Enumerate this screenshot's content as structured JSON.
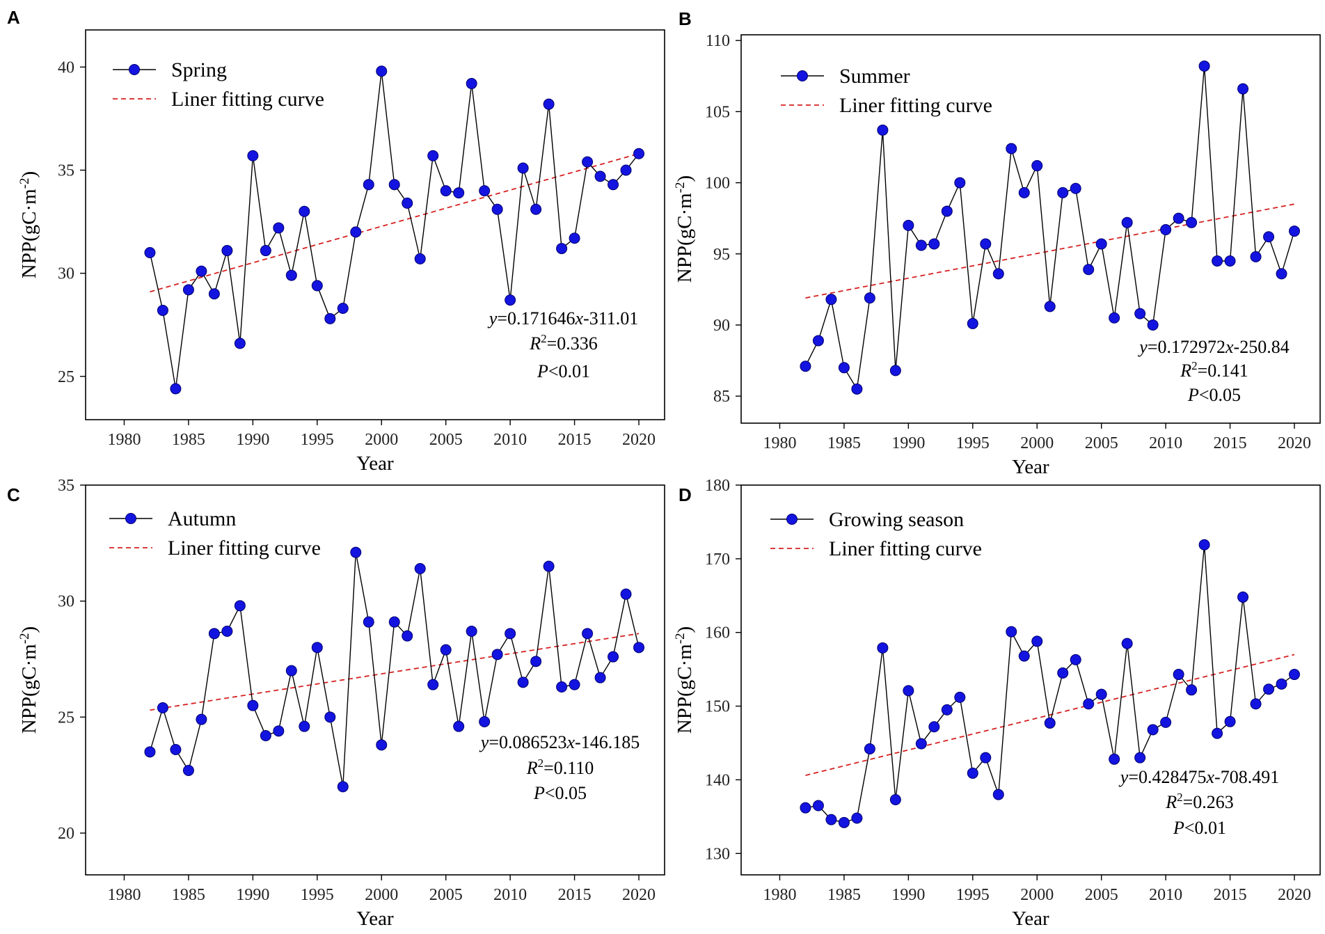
{
  "figure": {
    "x_label": "Year",
    "y_label_main": "NPP(gC·m",
    "y_label_sup": "-2",
    "y_label_close": ")"
  },
  "colors": {
    "point": "#1414e0",
    "point_edge": "#00006e",
    "line": "#000000",
    "fit": "#d62020"
  },
  "chart_data": [
    {
      "type": "line",
      "panel": "A",
      "series_name": "Spring",
      "fit_label": "Liner fitting curve",
      "x": [
        1982,
        1983,
        1984,
        1985,
        1986,
        1987,
        1988,
        1989,
        1990,
        1991,
        1992,
        1993,
        1994,
        1995,
        1996,
        1997,
        1998,
        1999,
        2000,
        2001,
        2002,
        2003,
        2004,
        2005,
        2006,
        2007,
        2008,
        2009,
        2010,
        2011,
        2012,
        2013,
        2014,
        2015,
        2016,
        2017,
        2018,
        2019,
        2020
      ],
      "values": [
        31.0,
        28.2,
        24.4,
        29.2,
        30.1,
        29.0,
        31.1,
        26.6,
        35.7,
        31.1,
        32.2,
        29.9,
        33.0,
        29.4,
        27.8,
        28.3,
        32.0,
        34.3,
        39.8,
        34.3,
        33.4,
        30.7,
        35.7,
        34.0,
        33.9,
        39.2,
        34.0,
        33.1,
        28.7,
        35.1,
        33.1,
        38.2,
        31.2,
        31.7,
        35.4,
        34.7,
        34.3,
        35.0,
        35.8
      ],
      "fit": {
        "x": [
          1982,
          2020
        ],
        "y": [
          29.1,
          35.8
        ]
      },
      "equation": {
        "y_prefix": "y",
        "body": "=0.171646",
        "x_var": "x",
        "tail": "-311.01",
        "r2_label": "R",
        "r2_sup": "2",
        "r2_value": "=0.336",
        "p_label": "P",
        "p_value": "<0.01"
      },
      "xlim": [
        1977.0,
        2022.0
      ],
      "ylim": [
        22.9,
        41.8
      ],
      "xticks": [
        "1980",
        "1985",
        "1990",
        "1995",
        "2000",
        "2005",
        "2010",
        "2015",
        "2020"
      ],
      "yticks": [
        "25",
        "30",
        "35",
        "40"
      ]
    },
    {
      "type": "line",
      "panel": "B",
      "series_name": "Summer",
      "fit_label": "Liner fitting curve",
      "x": [
        1982,
        1983,
        1984,
        1985,
        1986,
        1987,
        1988,
        1989,
        1990,
        1991,
        1992,
        1993,
        1994,
        1995,
        1996,
        1997,
        1998,
        1999,
        2000,
        2001,
        2002,
        2003,
        2004,
        2005,
        2006,
        2007,
        2008,
        2009,
        2010,
        2011,
        2012,
        2013,
        2014,
        2015,
        2016,
        2017,
        2018,
        2019,
        2020
      ],
      "values": [
        87.1,
        88.9,
        91.8,
        87.0,
        85.5,
        91.9,
        103.7,
        86.8,
        97.0,
        95.6,
        95.7,
        98.0,
        100.0,
        90.1,
        95.7,
        93.6,
        102.4,
        99.3,
        101.2,
        91.3,
        99.3,
        99.6,
        93.9,
        95.7,
        90.5,
        97.2,
        90.8,
        90.0,
        96.7,
        97.5,
        97.2,
        108.2,
        94.5,
        94.5,
        106.6,
        94.8,
        96.2,
        93.6,
        96.6
      ],
      "fit": {
        "x": [
          1982,
          2020
        ],
        "y": [
          91.9,
          98.5
        ]
      },
      "equation": {
        "y_prefix": "y",
        "body": "=0.172972",
        "x_var": "x",
        "tail": "-250.84",
        "r2_label": "R",
        "r2_sup": "2",
        "r2_value": "=0.141",
        "p_label": "P",
        "p_value": "<0.05"
      },
      "xlim": [
        1977.0,
        2022.0
      ],
      "ylim": [
        83.1,
        110.4
      ],
      "xticks": [
        "1980",
        "1985",
        "1990",
        "1995",
        "2000",
        "2005",
        "2010",
        "2015",
        "2020"
      ],
      "yticks": [
        "85",
        "90",
        "95",
        "100",
        "105",
        "110"
      ]
    },
    {
      "type": "line",
      "panel": "C",
      "series_name": "Autumn",
      "fit_label": "Liner fitting curve",
      "x": [
        1982,
        1983,
        1984,
        1985,
        1986,
        1987,
        1988,
        1989,
        1990,
        1991,
        1992,
        1993,
        1994,
        1995,
        1996,
        1997,
        1998,
        1999,
        2000,
        2001,
        2002,
        2003,
        2004,
        2005,
        2006,
        2007,
        2008,
        2009,
        2010,
        2011,
        2012,
        2013,
        2014,
        2015,
        2016,
        2017,
        2018,
        2019,
        2020
      ],
      "values": [
        23.5,
        25.4,
        23.6,
        22.7,
        24.9,
        28.6,
        28.7,
        29.8,
        25.5,
        24.2,
        24.4,
        27.0,
        24.6,
        28.0,
        25.0,
        22.0,
        32.1,
        29.1,
        23.8,
        29.1,
        28.5,
        31.4,
        26.4,
        27.9,
        24.6,
        28.7,
        24.8,
        27.7,
        28.6,
        26.5,
        27.4,
        31.5,
        26.3,
        26.4,
        28.6,
        26.7,
        27.6,
        30.3,
        28.0
      ],
      "fit": {
        "x": [
          1982,
          2020
        ],
        "y": [
          25.3,
          28.6
        ]
      },
      "equation": {
        "y_prefix": "y",
        "body": "=0.086523",
        "x_var": "x",
        "tail": "-146.185",
        "r2_label": "R",
        "r2_sup": "2",
        "r2_value": "=0.110",
        "p_label": "P",
        "p_value": "<0.05"
      },
      "xlim": [
        1977.0,
        2022.0
      ],
      "ylim": [
        18.2,
        35.0
      ],
      "xticks": [
        "1980",
        "1985",
        "1990",
        "1995",
        "2000",
        "2005",
        "2010",
        "2015",
        "2020"
      ],
      "yticks": [
        "20",
        "25",
        "30",
        "35"
      ]
    },
    {
      "type": "line",
      "panel": "D",
      "series_name": "Growing season",
      "fit_label": "Liner fitting curve",
      "x": [
        1982,
        1983,
        1984,
        1985,
        1986,
        1987,
        1988,
        1989,
        1990,
        1991,
        1992,
        1993,
        1994,
        1995,
        1996,
        1997,
        1998,
        1999,
        2000,
        2001,
        2002,
        2003,
        2004,
        2005,
        2006,
        2007,
        2008,
        2009,
        2010,
        2011,
        2012,
        2013,
        2014,
        2015,
        2016,
        2017,
        2018,
        2019,
        2020
      ],
      "values": [
        136.2,
        136.5,
        134.6,
        134.2,
        134.8,
        144.2,
        157.9,
        137.3,
        152.1,
        144.9,
        147.2,
        149.5,
        151.2,
        140.9,
        143.0,
        138.0,
        160.1,
        156.8,
        158.8,
        147.7,
        154.5,
        156.3,
        150.3,
        151.6,
        142.8,
        158.5,
        143.0,
        146.8,
        147.8,
        154.3,
        152.2,
        171.9,
        146.3,
        147.9,
        164.8,
        150.3,
        152.3,
        153.0,
        154.3
      ],
      "fit": {
        "x": [
          1982,
          2020
        ],
        "y": [
          140.6,
          157.0
        ]
      },
      "equation": {
        "y_prefix": "y",
        "body": "=0.428475",
        "x_var": "x",
        "tail": "-708.491",
        "r2_label": "R",
        "r2_sup": "2",
        "r2_value": "=0.263",
        "p_label": "P",
        "p_value": "<0.01"
      },
      "xlim": [
        1977.0,
        2022.0
      ],
      "ylim": [
        127.1,
        180.0
      ],
      "xticks": [
        "1980",
        "1985",
        "1990",
        "1995",
        "2000",
        "2005",
        "2010",
        "2015",
        "2020"
      ],
      "yticks": [
        "130",
        "140",
        "150",
        "160",
        "170",
        "180"
      ]
    }
  ]
}
